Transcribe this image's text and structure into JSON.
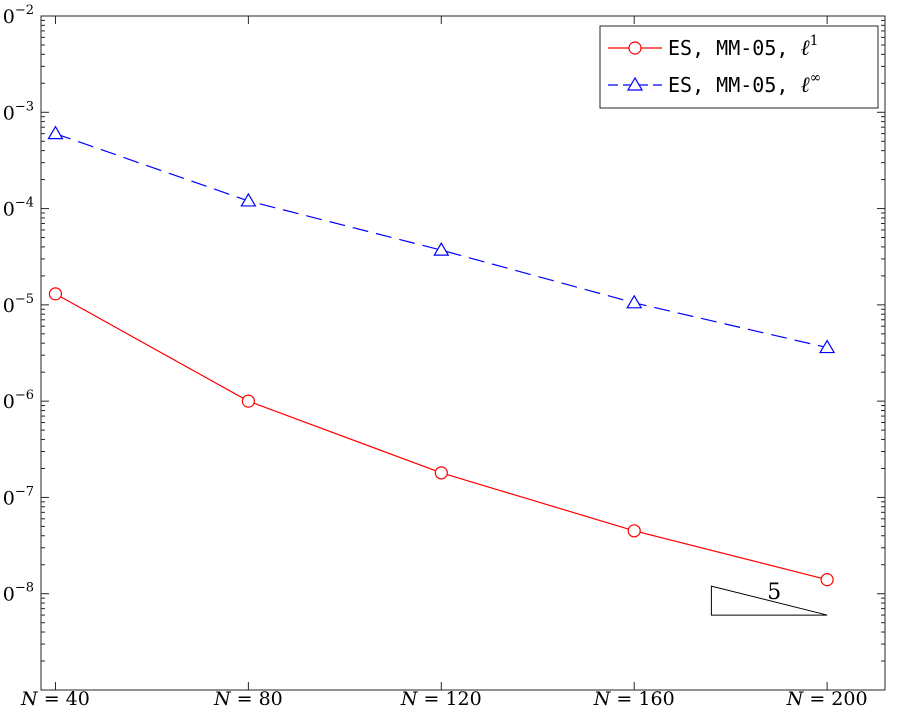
{
  "chart_data": {
    "type": "line",
    "title": "",
    "xlabel": "",
    "ylabel": "",
    "x": [
      40,
      80,
      120,
      160,
      200
    ],
    "x_tick_labels": [
      {
        "prefix": "N",
        "eq": " = ",
        "value": "40"
      },
      {
        "prefix": "N",
        "eq": " = ",
        "value": "80"
      },
      {
        "prefix": "N",
        "eq": " = ",
        "value": "120"
      },
      {
        "prefix": "N",
        "eq": " = ",
        "value": "160"
      },
      {
        "prefix": "N",
        "eq": " = ",
        "value": "200"
      }
    ],
    "xlim": [
      37,
      212
    ],
    "y_scale": "log",
    "ylim": [
      1e-09,
      0.01
    ],
    "y_tick_values": [
      1e-08,
      1e-07,
      1e-06,
      1e-05,
      0.0001,
      0.001,
      0.01
    ],
    "y_tick_labels": [
      {
        "base": "10",
        "exp": "−8"
      },
      {
        "base": "10",
        "exp": "−7"
      },
      {
        "base": "10",
        "exp": "−6"
      },
      {
        "base": "10",
        "exp": "−5"
      },
      {
        "base": "10",
        "exp": "−4"
      },
      {
        "base": "10",
        "exp": "−3"
      },
      {
        "base": "10",
        "exp": "−2"
      }
    ],
    "grid": false,
    "legend_position": "top-right",
    "series": [
      {
        "name": "ES, MM-05, ℓ1",
        "label_text": "ES, MM-05, ",
        "label_ell": "ℓ",
        "label_sup": "1",
        "values": [
          1.3e-05,
          1e-06,
          1.8e-07,
          4.5e-08,
          1.4e-08
        ],
        "color": "#ff0000",
        "line": "solid",
        "marker": "circle"
      },
      {
        "name": "ES, MM-05, ℓ∞",
        "label_text": "ES, MM-05, ",
        "label_ell": "ℓ",
        "label_sup": "∞",
        "values": [
          0.0006,
          0.00012,
          3.7e-05,
          1.05e-05,
          3.6e-06
        ],
        "color": "#0000ff",
        "line": "dashed",
        "marker": "triangle"
      }
    ],
    "slope_triangle": {
      "label": "5",
      "x_start": 176,
      "x_end": 200,
      "y_bottom": 6e-09,
      "y_top": 1.2e-08
    }
  }
}
